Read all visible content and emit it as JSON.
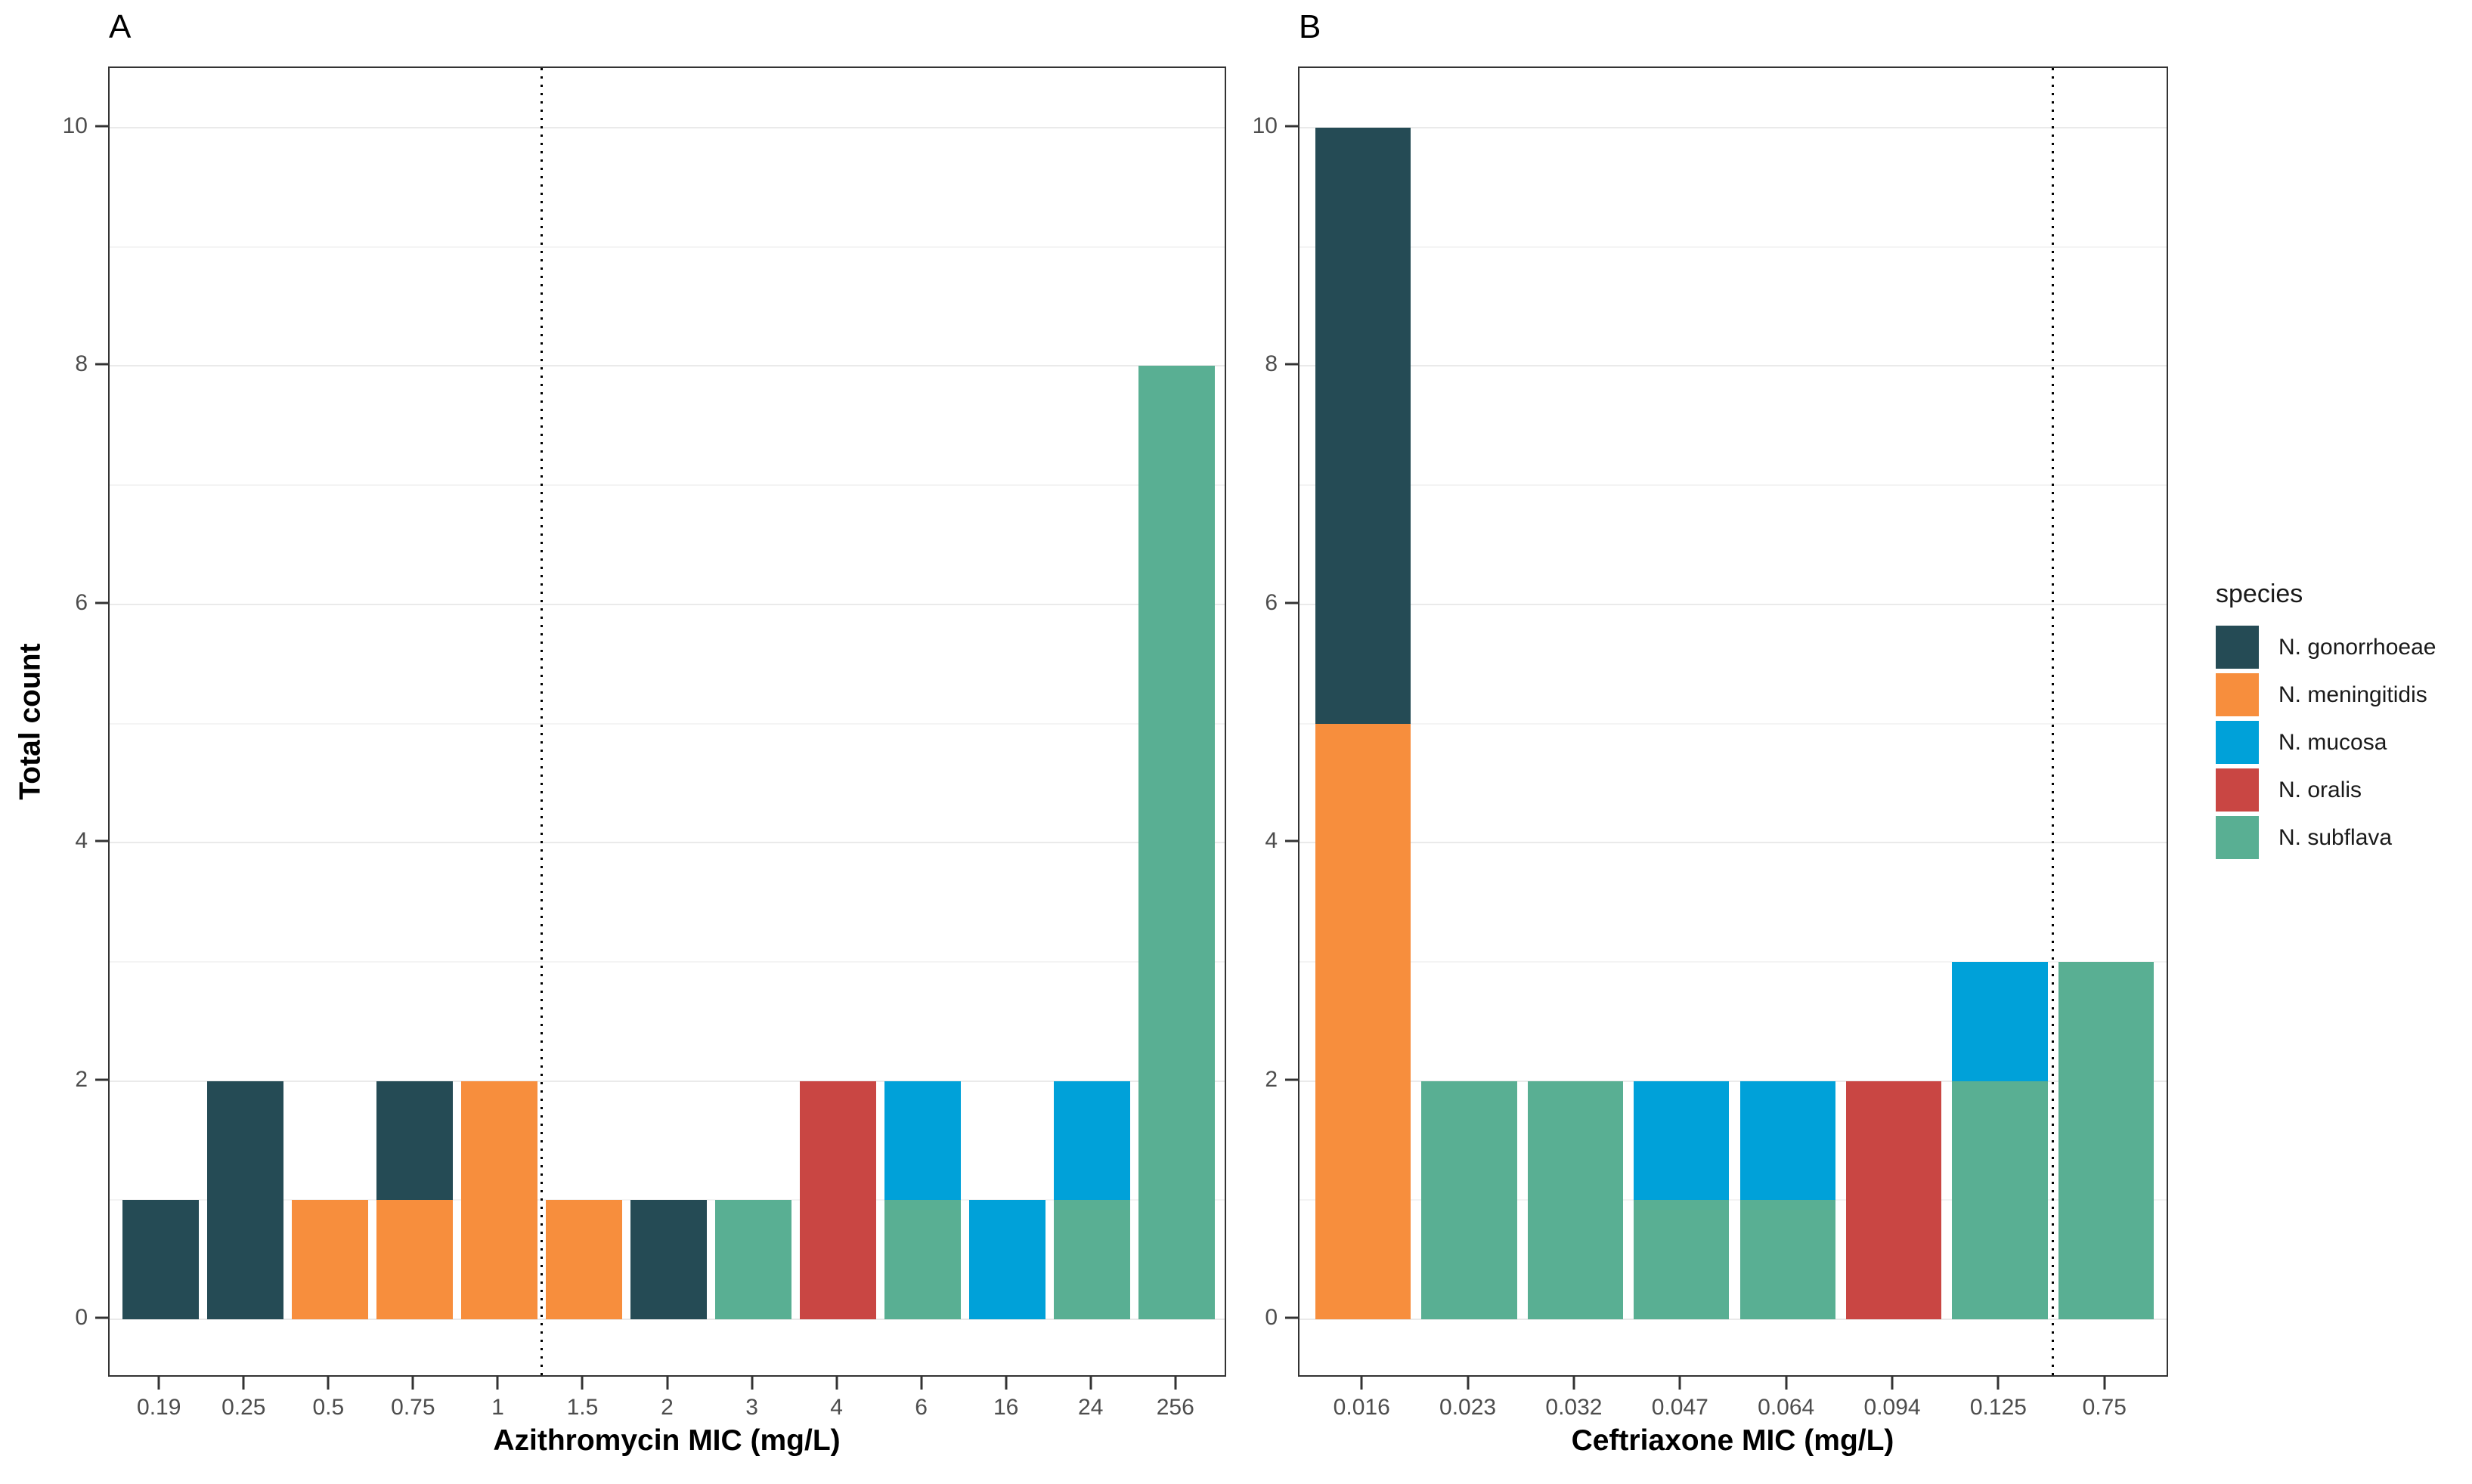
{
  "figure": {
    "y_axis_title": "Total count",
    "y_ticks": [
      0,
      2,
      4,
      6,
      8,
      10
    ],
    "y_minor_gridlines": [
      1,
      3,
      5,
      7,
      9
    ],
    "ylim": [
      0,
      10
    ],
    "grid": "major-even-minor-odd",
    "legend_position": "right",
    "background_color": "#ffffff",
    "panel_border_color": "#333333",
    "tick_label_color": "#4d4d4d",
    "threshold_line_color": "#000000",
    "legend": {
      "title": "species"
    },
    "species": [
      {
        "name": "N. gonorrhoeae",
        "color": "#254b55"
      },
      {
        "name": "N. meningitidis",
        "color": "#f78e3d"
      },
      {
        "name": "N. mucosa",
        "color": "#00a1d9"
      },
      {
        "name": "N. oralis",
        "color": "#c94643"
      },
      {
        "name": "N. subflava",
        "color": "#59af93"
      }
    ]
  },
  "chart_data": [
    {
      "type": "bar",
      "stacked": true,
      "panel_label": "A",
      "xlabel": "Azithromycin MIC (mg/L)",
      "ylabel": "Total count",
      "ylim": [
        0,
        10
      ],
      "y_ticks": [
        0,
        2,
        4,
        6,
        8,
        10
      ],
      "categories": [
        "0.19",
        "0.25",
        "0.5",
        "0.75",
        "1",
        "1.5",
        "2",
        "3",
        "4",
        "6",
        "16",
        "24",
        "256"
      ],
      "series": [
        {
          "name": "N. gonorrhoeae",
          "values": [
            1,
            2,
            0,
            1,
            0,
            0,
            1,
            0,
            0,
            0,
            0,
            0,
            0
          ]
        },
        {
          "name": "N. meningitidis",
          "values": [
            0,
            0,
            1,
            1,
            2,
            1,
            0,
            0,
            0,
            0,
            0,
            0,
            0
          ]
        },
        {
          "name": "N. mucosa",
          "values": [
            0,
            0,
            0,
            0,
            0,
            0,
            0,
            0,
            0,
            1,
            1,
            1,
            0
          ]
        },
        {
          "name": "N. oralis",
          "values": [
            0,
            0,
            0,
            0,
            0,
            0,
            0,
            0,
            2,
            0,
            0,
            0,
            0
          ]
        },
        {
          "name": "N. subflava",
          "values": [
            0,
            0,
            0,
            0,
            0,
            0,
            0,
            1,
            0,
            1,
            0,
            1,
            8
          ]
        }
      ],
      "totals": [
        1,
        2,
        1,
        2,
        2,
        1,
        1,
        1,
        2,
        2,
        1,
        2,
        8
      ],
      "stack_order_bottom_to_top": [
        "N. subflava",
        "N. oralis",
        "N. mucosa",
        "N. meningitidis",
        "N. gonorrhoeae"
      ],
      "vline_between": [
        "1",
        "1.5"
      ]
    },
    {
      "type": "bar",
      "stacked": true,
      "panel_label": "B",
      "xlabel": "Ceftriaxone MIC (mg/L)",
      "ylabel": "Total count",
      "ylim": [
        0,
        10
      ],
      "y_ticks": [
        0,
        2,
        4,
        6,
        8,
        10
      ],
      "categories": [
        "0.016",
        "0.023",
        "0.032",
        "0.047",
        "0.064",
        "0.094",
        "0.125",
        "0.75"
      ],
      "series": [
        {
          "name": "N. gonorrhoeae",
          "values": [
            5,
            0,
            0,
            0,
            0,
            0,
            0,
            0
          ]
        },
        {
          "name": "N. meningitidis",
          "values": [
            5,
            0,
            0,
            0,
            0,
            0,
            0,
            0
          ]
        },
        {
          "name": "N. mucosa",
          "values": [
            0,
            0,
            0,
            1,
            1,
            0,
            1,
            0
          ]
        },
        {
          "name": "N. oralis",
          "values": [
            0,
            0,
            0,
            0,
            0,
            2,
            0,
            0
          ]
        },
        {
          "name": "N. subflava",
          "values": [
            0,
            2,
            2,
            1,
            1,
            0,
            2,
            3
          ]
        }
      ],
      "totals": [
        10,
        2,
        2,
        2,
        2,
        2,
        3,
        3
      ],
      "stack_order_bottom_to_top": [
        "N. subflava",
        "N. oralis",
        "N. mucosa",
        "N. meningitidis",
        "N. gonorrhoeae"
      ],
      "vline_between": [
        "0.125",
        "0.75"
      ]
    }
  ]
}
